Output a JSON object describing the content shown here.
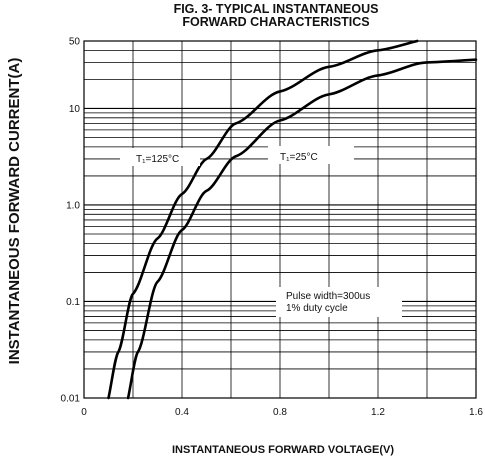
{
  "chart_data": {
    "type": "line",
    "title_line1": "FIG. 3- TYPICAL INSTANTANEOUS",
    "title_line2": "FORWARD CHARACTERISTICS",
    "xlabel": "INSTANTANEOUS FORWARD VOLTAGE(V)",
    "ylabel": "INSTANTANEOUS FORWARD CURRENT(A)",
    "y_scale": "log",
    "xlim": [
      0,
      1.6
    ],
    "ylim": [
      0.01,
      50
    ],
    "grid": true,
    "x_ticks": [
      "0",
      "0.4",
      "0.8",
      "1.2",
      "1.6"
    ],
    "y_ticks": [
      {
        "value": 0.01,
        "label": "0.01"
      },
      {
        "value": 0.1,
        "label": "0.1"
      },
      {
        "value": 1,
        "label": "1.0"
      },
      {
        "value": 10,
        "label": "10"
      },
      {
        "value": 50,
        "label": "50"
      }
    ],
    "annotations": {
      "t125": "T₁=125°C",
      "t25": "T₁=25°C",
      "pulse": "Pulse width=300us",
      "duty": "1% duty cycle"
    },
    "series": [
      {
        "name": "TJ=125°C",
        "x": [
          0.1,
          0.14,
          0.2,
          0.3,
          0.4,
          0.5,
          0.62,
          0.8,
          1.0,
          1.2,
          1.36
        ],
        "y": [
          0.01,
          0.03,
          0.12,
          0.45,
          1.3,
          3.0,
          7.0,
          15,
          27,
          40,
          50
        ]
      },
      {
        "name": "TJ=25°C",
        "x": [
          0.18,
          0.22,
          0.3,
          0.4,
          0.5,
          0.62,
          0.8,
          1.0,
          1.2,
          1.4,
          1.6
        ],
        "y": [
          0.01,
          0.03,
          0.16,
          0.55,
          1.4,
          3.2,
          7.5,
          14,
          22,
          30,
          32
        ]
      }
    ]
  }
}
